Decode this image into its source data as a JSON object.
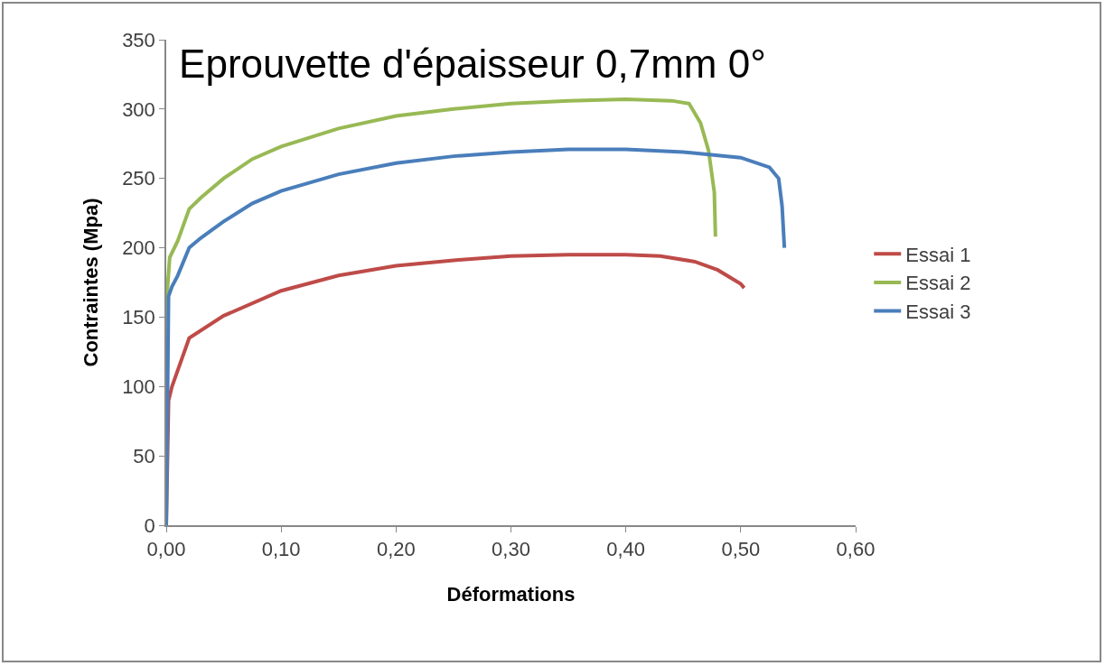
{
  "chart_data": {
    "type": "line",
    "title": "Eprouvette d'épaisseur 0,7mm 0°",
    "xlabel": "Déformations",
    "ylabel": "Contraintes (Mpa)",
    "xlim": [
      0,
      0.6
    ],
    "xticks": [
      {
        "value": 0,
        "label": "0,00"
      },
      {
        "value": 0.1,
        "label": "0,10"
      },
      {
        "value": 0.2,
        "label": "0,20"
      },
      {
        "value": 0.3,
        "label": "0,30"
      },
      {
        "value": 0.4,
        "label": "0,40"
      },
      {
        "value": 0.5,
        "label": "0,50"
      },
      {
        "value": 0.6,
        "label": "0,60"
      }
    ],
    "ylim": [
      0,
      350
    ],
    "yticks": [
      0,
      50,
      100,
      150,
      200,
      250,
      300,
      350
    ],
    "grid": false,
    "legend": "right",
    "marker": "none",
    "line_style": "solid",
    "series": [
      {
        "name": "Essai 1",
        "color": "#be4b48",
        "x": [
          0,
          0.002,
          0.005,
          0.02,
          0.05,
          0.1,
          0.15,
          0.2,
          0.25,
          0.3,
          0.35,
          0.4,
          0.43,
          0.46,
          0.48,
          0.5,
          0.503
        ],
        "values": [
          0,
          90,
          100,
          135,
          151,
          169,
          180,
          187,
          191,
          194,
          195,
          195,
          194,
          190,
          184,
          174,
          171
        ]
      },
      {
        "name": "Essai 2",
        "color": "#98b954",
        "x": [
          0,
          0.001,
          0.003,
          0.01,
          0.02,
          0.03,
          0.05,
          0.075,
          0.1,
          0.15,
          0.2,
          0.25,
          0.3,
          0.35,
          0.4,
          0.44,
          0.455,
          0.465,
          0.472,
          0.477,
          0.478
        ],
        "values": [
          0,
          170,
          193,
          205,
          228,
          236,
          250,
          264,
          273,
          286,
          295,
          300,
          304,
          306,
          307,
          306,
          304,
          290,
          270,
          240,
          208
        ]
      },
      {
        "name": "Essai 3",
        "color": "#4a7ebb",
        "x": [
          0,
          0.002,
          0.005,
          0.01,
          0.02,
          0.03,
          0.05,
          0.075,
          0.1,
          0.15,
          0.2,
          0.25,
          0.3,
          0.35,
          0.4,
          0.45,
          0.5,
          0.525,
          0.533,
          0.536,
          0.538
        ],
        "values": [
          0,
          165,
          172,
          180,
          200,
          207,
          219,
          232,
          241,
          253,
          261,
          266,
          269,
          271,
          271,
          269,
          265,
          258,
          250,
          230,
          200
        ]
      }
    ]
  }
}
